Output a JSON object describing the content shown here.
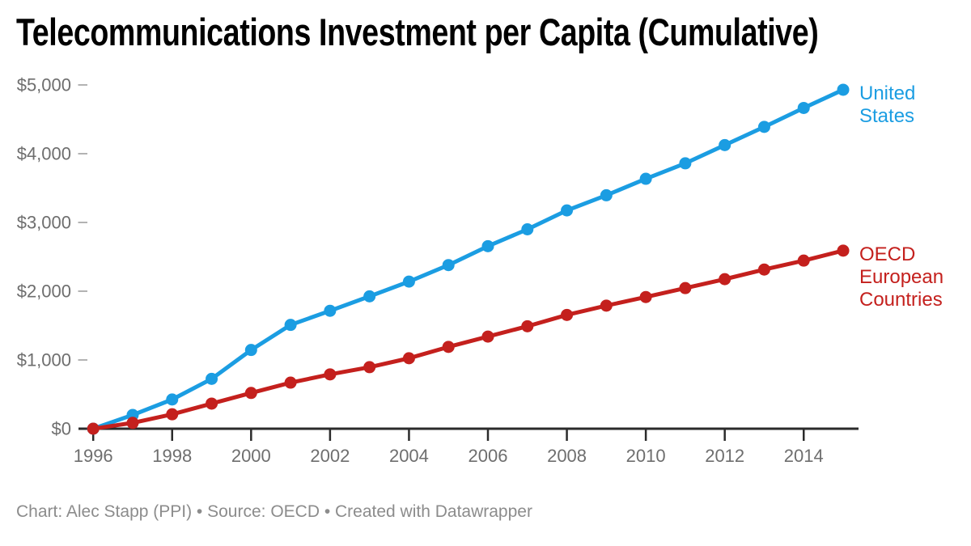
{
  "title": "Telecommunications Investment per Capita (Cumulative)",
  "footer": "Chart: Alec Stapp (PPI) • Source: OECD • Created with Datawrapper",
  "chart_data": {
    "type": "line",
    "title": "Telecommunications Investment per Capita (Cumulative)",
    "xlabel": "",
    "ylabel": "",
    "xlim": [
      1996,
      2015
    ],
    "ylim": [
      0,
      5000
    ],
    "grid": false,
    "legend_position": "right-of-line-end",
    "x": [
      1996,
      1997,
      1998,
      1999,
      2000,
      2001,
      2002,
      2003,
      2004,
      2005,
      2006,
      2007,
      2008,
      2009,
      2010,
      2011,
      2012,
      2013,
      2014,
      2015
    ],
    "x_ticks": [
      "1996",
      "1998",
      "2000",
      "2002",
      "2004",
      "2006",
      "2008",
      "2010",
      "2012",
      "2014"
    ],
    "y_ticks": [
      {
        "value": 0,
        "label": "$0"
      },
      {
        "value": 1000,
        "label": "$1,000"
      },
      {
        "value": 2000,
        "label": "$2,000"
      },
      {
        "value": 3000,
        "label": "$3,000"
      },
      {
        "value": 4000,
        "label": "$4,000"
      },
      {
        "value": 5000,
        "label": "$5,000"
      }
    ],
    "series": [
      {
        "name": "United States",
        "color": "#1B9DE2",
        "values": [
          0,
          200,
          425,
          725,
          1145,
          1510,
          1715,
          1925,
          2140,
          2380,
          2655,
          2900,
          3175,
          3395,
          3635,
          3860,
          4125,
          4390,
          4665,
          4930
        ]
      },
      {
        "name": "OECD European Countries",
        "color": "#C4201D",
        "values": [
          0,
          85,
          210,
          365,
          520,
          670,
          790,
          895,
          1025,
          1190,
          1340,
          1490,
          1655,
          1790,
          1915,
          2045,
          2175,
          2315,
          2445,
          2590
        ]
      }
    ],
    "style": {
      "axis_line_color": "#2b2b2b",
      "tick_dash_color": "#b3b3b3",
      "tick_label_color": "#6e6e6e",
      "line_width": 5,
      "marker_radius": 7.5
    }
  }
}
